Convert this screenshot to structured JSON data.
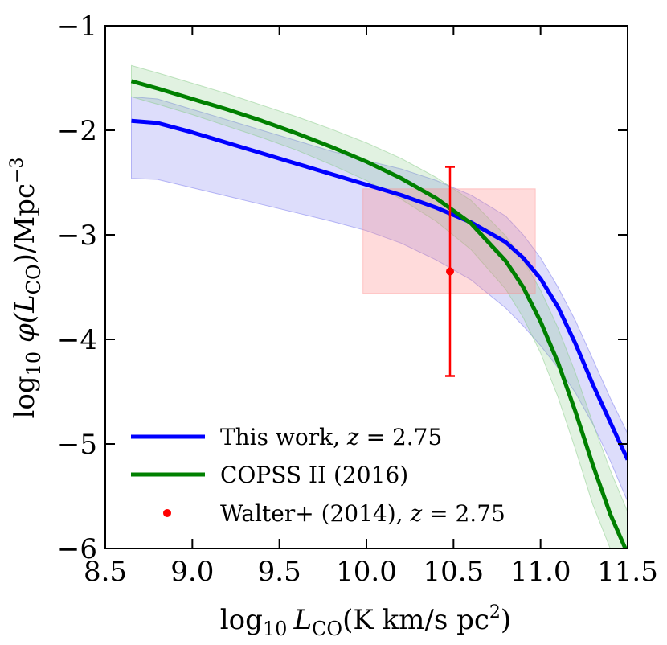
{
  "chart_data": {
    "type": "line",
    "xlabel": "log10 LCO(K km/s pc2)",
    "ylabel": "log10 φ(LCO)/Mpc−3",
    "xlabel_parts": {
      "prefix": "log",
      "sub": "10",
      "var": "L",
      "var_sub": "CO",
      "rest": "(K km/s pc",
      "sup": "2",
      "close": ")"
    },
    "ylabel_parts": {
      "prefix": "log",
      "sub": "10",
      "var": " φ(L",
      "var_sub": "CO",
      "rest": ")/Mpc",
      "sup": "−3"
    },
    "xlim": [
      8.5,
      11.5
    ],
    "ylim": [
      -6,
      -1
    ],
    "xticks": [
      8.5,
      9.0,
      9.5,
      10.0,
      10.5,
      11.0,
      11.5
    ],
    "xtick_labels": [
      "8.5",
      "9.0",
      "9.5",
      "10.0",
      "10.5",
      "11.0",
      "11.5"
    ],
    "yticks": [
      -1,
      -2,
      -3,
      -4,
      -5,
      -6
    ],
    "ytick_labels": [
      "−1",
      "−2",
      "−3",
      "−4",
      "−5",
      "−6"
    ],
    "series": [
      {
        "name": "This work, z = 2.75",
        "color": "#0000ff",
        "band_color": "#7777ee",
        "x": [
          8.65,
          8.8,
          9.0,
          9.2,
          9.4,
          9.6,
          9.8,
          10.0,
          10.2,
          10.4,
          10.6,
          10.8,
          10.9,
          11.0,
          11.1,
          11.2,
          11.3,
          11.4,
          11.5
        ],
        "y": [
          -1.91,
          -1.93,
          -2.02,
          -2.12,
          -2.22,
          -2.32,
          -2.42,
          -2.52,
          -2.62,
          -2.74,
          -2.88,
          -3.07,
          -3.22,
          -3.42,
          -3.69,
          -4.04,
          -4.43,
          -4.79,
          -5.15
        ],
        "upper": [
          -1.68,
          -1.7,
          -1.8,
          -1.9,
          -2.0,
          -2.1,
          -2.2,
          -2.29,
          -2.37,
          -2.48,
          -2.62,
          -2.82,
          -3.0,
          -3.22,
          -3.5,
          -3.82,
          -4.19,
          -4.56,
          -4.9
        ],
        "lower": [
          -2.46,
          -2.47,
          -2.55,
          -2.63,
          -2.71,
          -2.79,
          -2.87,
          -2.96,
          -3.08,
          -3.24,
          -3.43,
          -3.7,
          -3.87,
          -4.06,
          -4.27,
          -4.51,
          -4.81,
          -5.16,
          -5.55
        ]
      },
      {
        "name": "COPSS II (2016)",
        "color": "#008000",
        "band_color": "#88cc88",
        "x": [
          8.65,
          8.8,
          9.0,
          9.2,
          9.4,
          9.6,
          9.8,
          10.0,
          10.2,
          10.4,
          10.6,
          10.8,
          10.9,
          11.0,
          11.1,
          11.2,
          11.3,
          11.4,
          11.5
        ],
        "y": [
          -1.53,
          -1.6,
          -1.7,
          -1.8,
          -1.91,
          -2.03,
          -2.16,
          -2.3,
          -2.46,
          -2.65,
          -2.89,
          -3.25,
          -3.5,
          -3.83,
          -4.22,
          -4.69,
          -5.2,
          -5.67,
          -6.05
        ],
        "upper": [
          -1.38,
          -1.45,
          -1.55,
          -1.65,
          -1.76,
          -1.87,
          -1.99,
          -2.12,
          -2.27,
          -2.45,
          -2.67,
          -3.01,
          -3.24,
          -3.53,
          -3.89,
          -4.32,
          -4.8,
          -5.25,
          -5.65
        ],
        "lower": [
          -1.68,
          -1.75,
          -1.85,
          -1.96,
          -2.07,
          -2.19,
          -2.33,
          -2.48,
          -2.66,
          -2.87,
          -3.14,
          -3.52,
          -3.79,
          -4.13,
          -4.55,
          -5.05,
          -5.58,
          -6.0,
          -6.0
        ]
      }
    ],
    "points": [
      {
        "name": "Walter+ (2014), z = 2.75",
        "color": "#ff0000",
        "x": 10.48,
        "y": -3.35,
        "yerr_upper": -2.35,
        "yerr_lower": -4.35,
        "box_x": [
          9.98,
          10.97
        ],
        "box_y": [
          -3.56,
          -2.56
        ]
      }
    ],
    "legend": {
      "location": "lower-left",
      "entries": [
        {
          "label_prefix": "This work, ",
          "label_var": "z",
          "label_suffix": " = 2.75",
          "color": "#0000ff",
          "marker": "line"
        },
        {
          "label_prefix": "COPSS II (2016)",
          "label_var": "",
          "label_suffix": "",
          "color": "#008000",
          "marker": "line"
        },
        {
          "label_prefix": "Walter+ (2014), ",
          "label_var": "z",
          "label_suffix": " = 2.75",
          "color": "#ff0000",
          "marker": "dot"
        }
      ]
    }
  }
}
